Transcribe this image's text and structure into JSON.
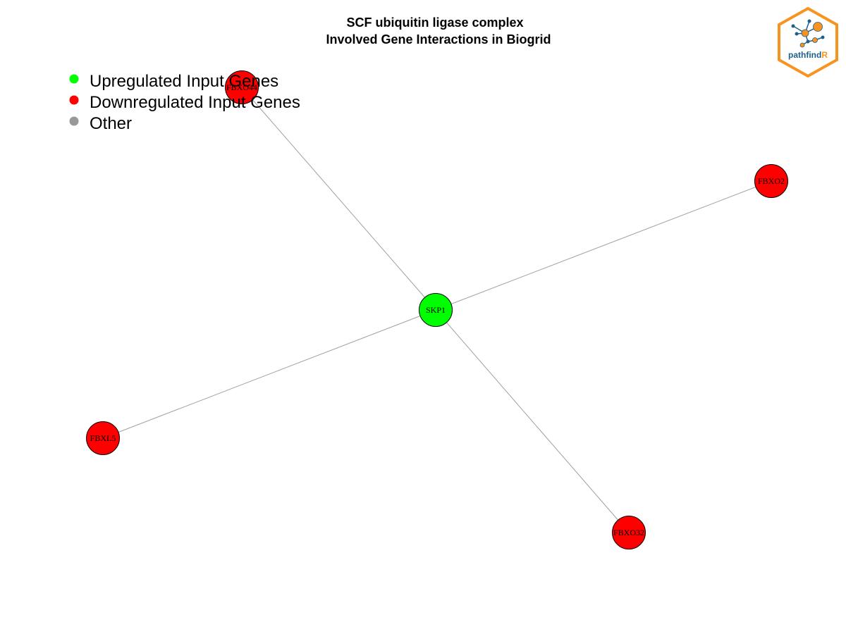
{
  "title": {
    "line1": "SCF ubiquitin ligase complex",
    "line2": "Involved Gene Interactions in Biogrid"
  },
  "legend": {
    "items": [
      {
        "label": "Upregulated Input Genes",
        "color": "#00ff00"
      },
      {
        "label": "Downregulated Input Genes",
        "color": "#ff0000"
      },
      {
        "label": "Other",
        "color": "#999999"
      }
    ]
  },
  "colors": {
    "upregulated": "#00ff00",
    "downregulated": "#ff0000",
    "edge": "#a0a0a0",
    "logo_orange": "#f7931e",
    "logo_blue": "#1f5f8b"
  },
  "network": {
    "nodes": [
      {
        "id": "SKP1",
        "label": "SKP1",
        "status": "upregulated"
      },
      {
        "id": "FBXO44",
        "label": "FBXO44",
        "status": "downregulated"
      },
      {
        "id": "FBXO2",
        "label": "FBXO2",
        "status": "downregulated"
      },
      {
        "id": "FBXL5",
        "label": "FBXL5",
        "status": "downregulated"
      },
      {
        "id": "FBXO32",
        "label": "FBXO32",
        "status": "downregulated"
      }
    ],
    "edges": [
      {
        "source": "SKP1",
        "target": "FBXO44"
      },
      {
        "source": "SKP1",
        "target": "FBXO2"
      },
      {
        "source": "SKP1",
        "target": "FBXL5"
      },
      {
        "source": "SKP1",
        "target": "FBXO32"
      }
    ]
  },
  "logo": {
    "icon": "pathfindr-hexagon-network-logo",
    "text_main": "pathfind",
    "text_accent": "R"
  }
}
